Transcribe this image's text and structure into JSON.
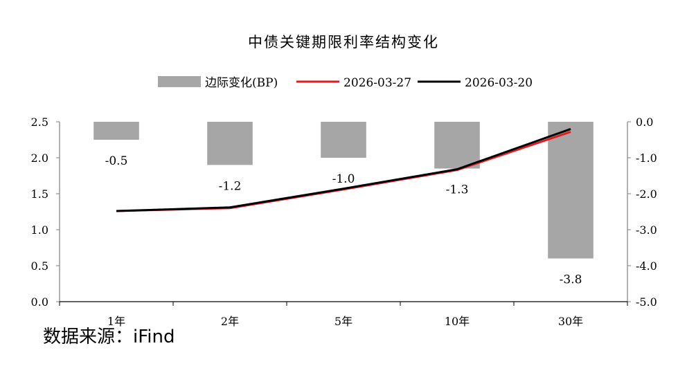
{
  "source": "数据来源：iFind",
  "chart_data": {
    "type": "bar+line",
    "title": "中债关键期限利率结构变化",
    "categories": [
      "1年",
      "2年",
      "5年",
      "10年",
      "30年"
    ],
    "bar_series": {
      "name": "边际变化(BP)",
      "values": [
        -0.5,
        -1.2,
        -1.0,
        -1.3,
        -3.8
      ],
      "labels": [
        "-0.5",
        "-1.2",
        "-1.0",
        "-1.3",
        "-3.8"
      ],
      "color": "#a6a6a6",
      "axis": "right"
    },
    "line_series": [
      {
        "name": "2026-03-27",
        "values": [
          1.26,
          1.3,
          1.56,
          1.83,
          2.36
        ],
        "color": "#e31a1c",
        "axis": "left"
      },
      {
        "name": "2026-03-20",
        "values": [
          1.26,
          1.31,
          1.57,
          1.84,
          2.4
        ],
        "color": "#000000",
        "axis": "left"
      }
    ],
    "left_axis": {
      "ylim": [
        0.0,
        2.5
      ],
      "ticks": [
        "0.0",
        "0.5",
        "1.0",
        "1.5",
        "2.0",
        "2.5"
      ]
    },
    "right_axis": {
      "ylim": [
        -5.0,
        0.0
      ],
      "ticks": [
        "-5.0",
        "-4.0",
        "-3.0",
        "-2.0",
        "-1.0",
        "0.0"
      ]
    },
    "legend_position": "top",
    "grid": false
  }
}
